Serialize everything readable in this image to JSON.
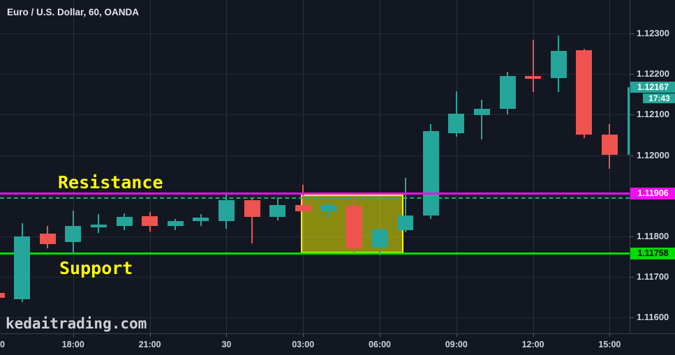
{
  "header": {
    "title": "Euro / U.S. Dollar, 60, OANDA"
  },
  "watermark": "kedaitrading.com",
  "annotations": {
    "resistance": {
      "label": "Resistance",
      "price": 1.11906,
      "axis_label": "1.11906",
      "color": "#ee10ee"
    },
    "support": {
      "label": "Support",
      "price": 1.11758,
      "axis_label": "1.11758",
      "color": "#00db00"
    },
    "baseline_dashed": {
      "price": 1.11894,
      "color": "#26a69a",
      "style": "dashed"
    },
    "highlight_box": {
      "from_time": "03:00",
      "to_time": "07:00",
      "from_index": 12,
      "to_index": 16,
      "top_price": 1.11906,
      "bottom_price": 1.11758,
      "fill": "#ffff00",
      "opacity": 0.5
    }
  },
  "price_axis": {
    "labels": [
      "1.12300",
      "1.12200",
      "1.12100",
      "1.12000",
      "1.11800",
      "1.11700",
      "1.11600"
    ],
    "gridline_prices": [
      1.123,
      1.122,
      1.121,
      1.12,
      1.119,
      1.118,
      1.117,
      1.116
    ],
    "last_price_label": "1.12167",
    "countdown": "17:43"
  },
  "time_axis": {
    "ticks": [
      {
        "index": 0,
        "label": "0",
        "edge_clipped": true
      },
      {
        "index": 3,
        "label": "18:00"
      },
      {
        "index": 6,
        "label": "21:00"
      },
      {
        "index": 9,
        "label": "30"
      },
      {
        "index": 12,
        "label": "03:00"
      },
      {
        "index": 15,
        "label": "06:00"
      },
      {
        "index": 18,
        "label": "09:00"
      },
      {
        "index": 21,
        "label": "12:00"
      },
      {
        "index": 24,
        "label": "15:00"
      }
    ]
  },
  "chart_data": {
    "type": "candlestick",
    "title": "Euro / U.S. Dollar, 60, OANDA",
    "symbol": "EUR/USD",
    "interval_minutes": 60,
    "exchange": "OANDA",
    "last_price": 1.12167,
    "ylim": [
      1.1156,
      1.12385
    ],
    "up_color": "#26a69a",
    "down_color": "#ef5350",
    "grid": true,
    "x": [
      "15:00",
      "16:00",
      "17:00",
      "18:00",
      "19:00",
      "20:00",
      "21:00",
      "22:00",
      "23:00",
      "00:00",
      "01:00",
      "02:00",
      "03:00",
      "04:00",
      "05:00",
      "06:00",
      "07:00",
      "08:00",
      "09:00",
      "10:00",
      "11:00",
      "12:00",
      "13:00",
      "14:00",
      "15:00",
      "16:00"
    ],
    "ohlc": [
      [
        1.1166,
        1.11663,
        1.11645,
        1.11648
      ],
      [
        1.11645,
        1.11833,
        1.11638,
        1.118
      ],
      [
        1.11807,
        1.11826,
        1.1177,
        1.11781
      ],
      [
        1.11786,
        1.11864,
        1.11757,
        1.11825
      ],
      [
        1.11822,
        1.11855,
        1.11808,
        1.11829
      ],
      [
        1.11826,
        1.11857,
        1.11816,
        1.11848
      ],
      [
        1.1185,
        1.1186,
        1.11812,
        1.11825
      ],
      [
        1.11825,
        1.11843,
        1.11816,
        1.11837
      ],
      [
        1.11837,
        1.11855,
        1.11825,
        1.11846
      ],
      [
        1.11838,
        1.11906,
        1.11819,
        1.11889
      ],
      [
        1.1189,
        1.11895,
        1.11782,
        1.11848
      ],
      [
        1.11848,
        1.11897,
        1.1184,
        1.11878
      ],
      [
        1.11878,
        1.11927,
        1.11858,
        1.11861
      ],
      [
        1.11861,
        1.11884,
        1.11847,
        1.11878
      ],
      [
        1.11875,
        1.11895,
        1.11761,
        1.1177
      ],
      [
        1.11772,
        1.11823,
        1.11753,
        1.11817
      ],
      [
        1.11816,
        1.11944,
        1.1181,
        1.11852
      ],
      [
        1.11852,
        1.12077,
        1.11843,
        1.1206
      ],
      [
        1.12055,
        1.12158,
        1.12046,
        1.12102
      ],
      [
        1.12099,
        1.12137,
        1.12038,
        1.12115
      ],
      [
        1.12115,
        1.12205,
        1.12101,
        1.12196
      ],
      [
        1.12196,
        1.12284,
        1.12156,
        1.12189
      ],
      [
        1.1219,
        1.12295,
        1.12155,
        1.12257
      ],
      [
        1.12258,
        1.12262,
        1.12042,
        1.1205
      ],
      [
        1.12051,
        1.12077,
        1.11967,
        1.12001
      ],
      [
        1.12001,
        1.1217,
        1.12,
        1.12167
      ]
    ]
  }
}
